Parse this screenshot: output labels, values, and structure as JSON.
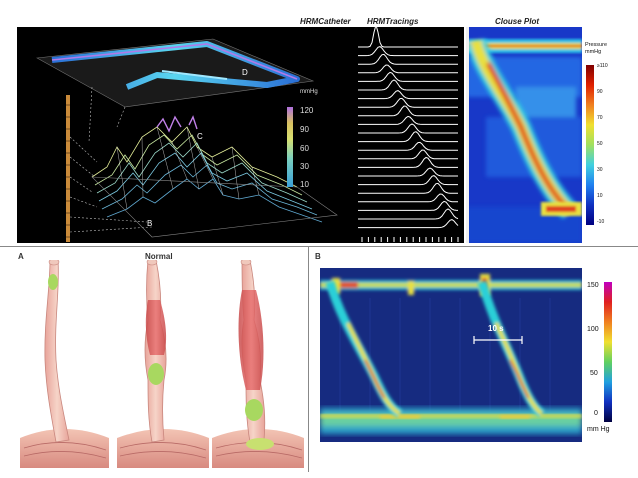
{
  "headers": {
    "catheter": "HRMCatheter",
    "tracings": "HRMTracings",
    "clouse": "Clouse Plot"
  },
  "surface_plot": {
    "unit": "mmHg",
    "scale_ticks": [
      "120",
      "90",
      "60",
      "30",
      "10"
    ],
    "labels": {
      "b": "B",
      "c": "C",
      "d": "D"
    }
  },
  "clouse_scale": {
    "title_line1": "Pressure",
    "title_line2": "mmHg",
    "ticks": [
      "≥110",
      "90",
      "70",
      "50",
      "30",
      "10",
      "-10"
    ]
  },
  "panel_a": {
    "letter": "A",
    "title": "Normal"
  },
  "panel_b": {
    "letter": "B",
    "time_label": "10 s",
    "scale_ticks": [
      "150",
      "100",
      "50",
      "0"
    ],
    "scale_unit": "mm Hg"
  }
}
